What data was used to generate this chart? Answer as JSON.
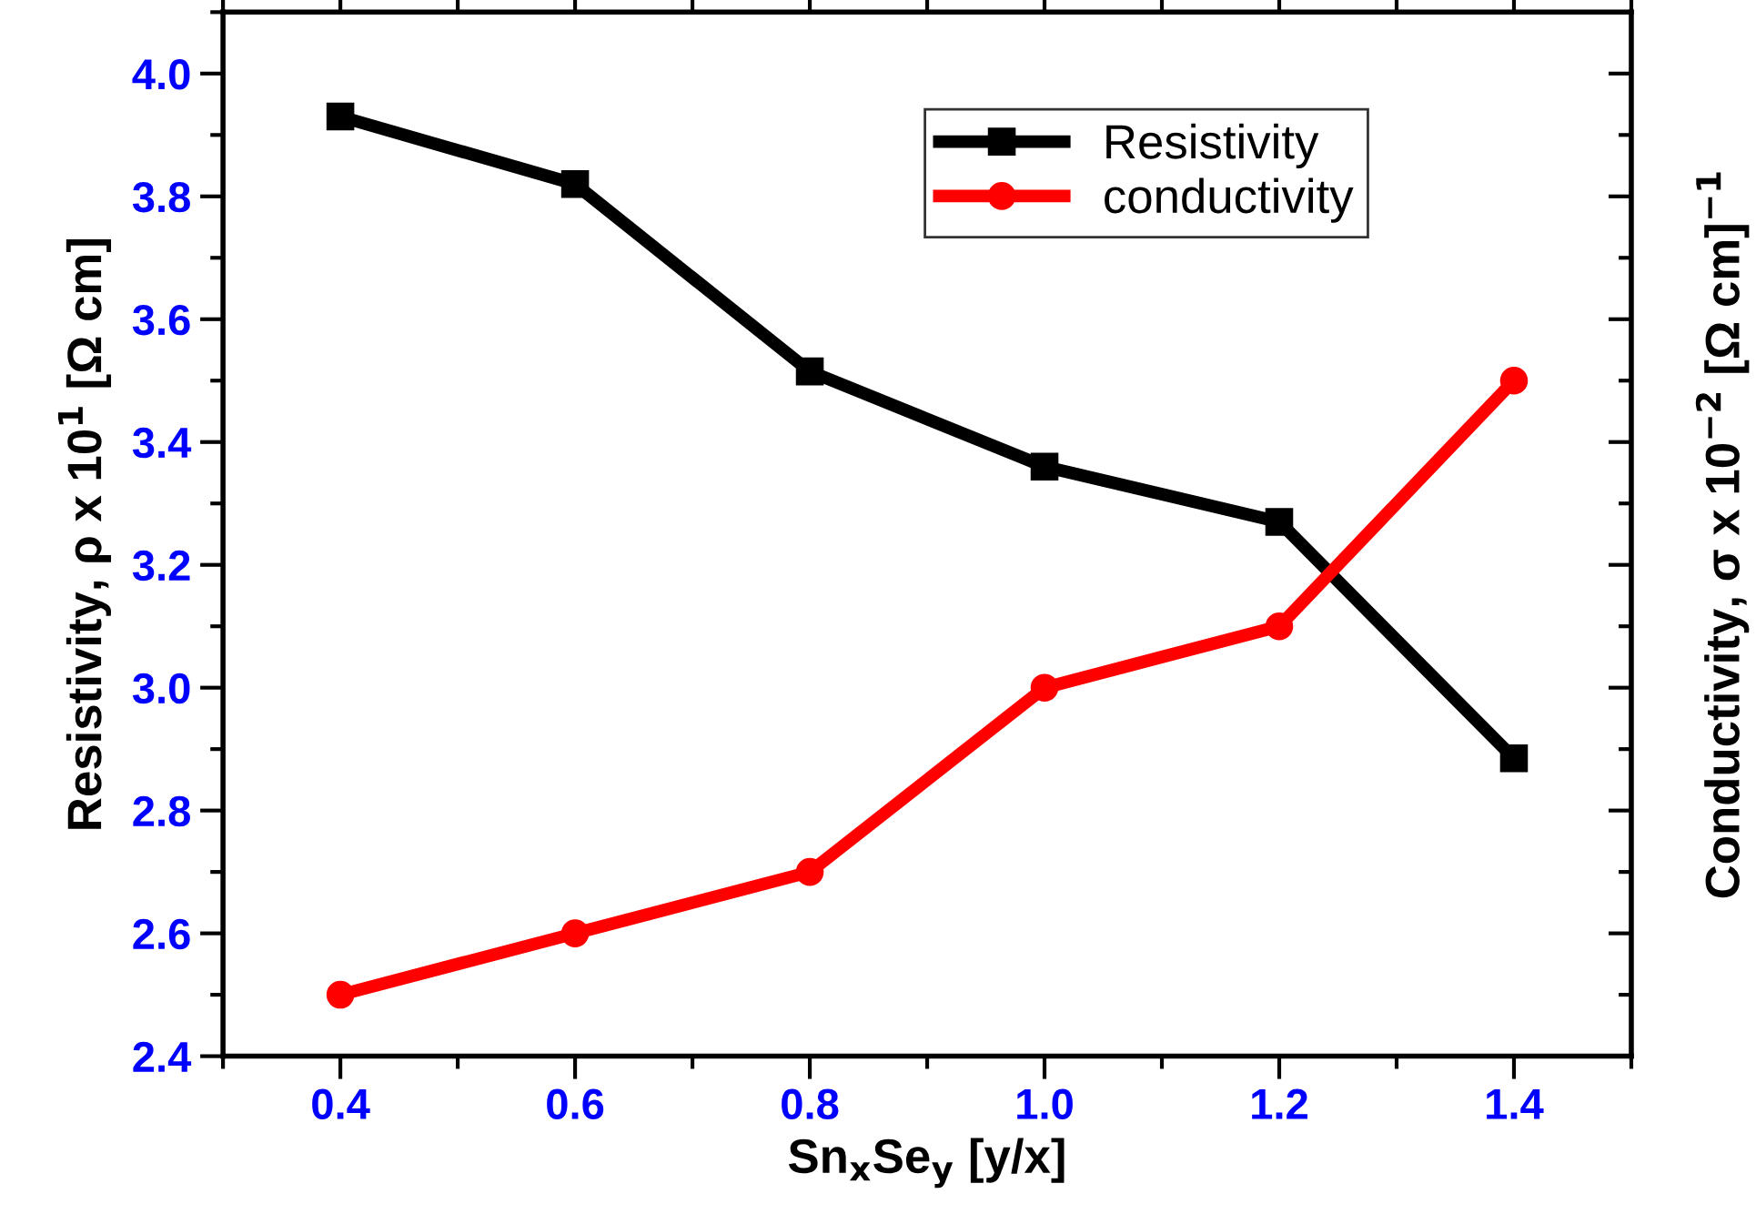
{
  "chart_data": {
    "type": "line",
    "xlabel": "Sn$_{x}$Se$_{y}$ [y/x]",
    "ylabel": "Resistivity, ρ x 10$^{1}$ [Ω cm]",
    "y2label": "Conductivity, σ x 10$^{−2}$ [Ω cm]$^{−1}$",
    "x": [
      0.4,
      0.6,
      0.8,
      1.0,
      1.2,
      1.4
    ],
    "series": [
      {
        "name": "Resistivity",
        "color": "#000000",
        "marker": "square",
        "values": [
          3.93,
          3.82,
          3.515,
          3.36,
          3.27,
          2.885
        ]
      },
      {
        "name": "conductivity",
        "color": "#ff0000",
        "marker": "circle",
        "values": [
          2.5,
          2.6,
          2.7,
          3.0,
          3.1,
          3.5
        ]
      }
    ],
    "xlim": [
      0.3,
      1.5
    ],
    "xticks": [
      0.4,
      0.6,
      0.8,
      {
        "value": 1.0,
        "label": "1.0"
      },
      1.2,
      1.4
    ],
    "ylim": [
      2.4,
      4.1
    ],
    "yticks": [
      2.4,
      2.6,
      2.8,
      {
        "value": 3.0,
        "label": "3.0"
      },
      3.2,
      3.4,
      3.6,
      3.8,
      {
        "value": 4.0,
        "label": "4.0"
      }
    ],
    "tick_labels": "xy",
    "grid": false,
    "legend": "top right",
    "line_style": "solid"
  }
}
